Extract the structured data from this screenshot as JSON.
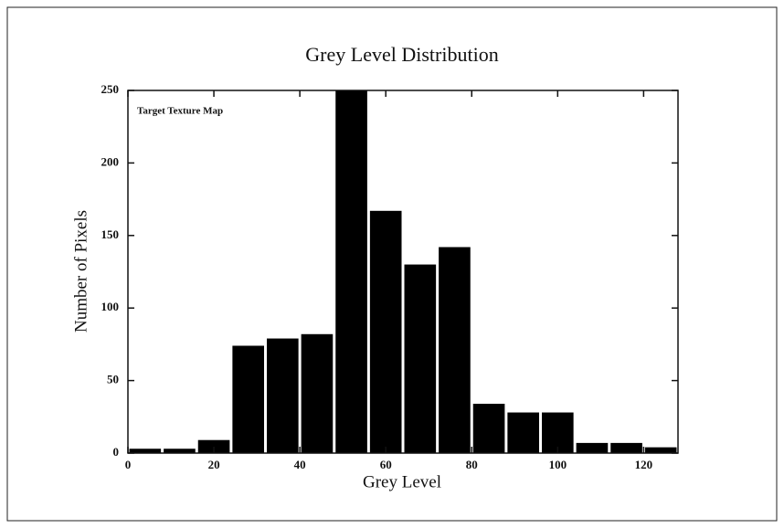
{
  "chart_data": {
    "type": "histogram",
    "title": "Grey Level Distribution",
    "xlabel": "Grey Level",
    "ylabel": "Number of Pixels",
    "annotation": "Target Texture Map",
    "bins": [
      0,
      8,
      16,
      24,
      32,
      40,
      48,
      56,
      64,
      72,
      80,
      88,
      96,
      104,
      112,
      120,
      128
    ],
    "values": [
      3,
      3,
      9,
      74,
      79,
      82,
      250,
      167,
      130,
      142,
      34,
      28,
      28,
      7,
      7,
      4
    ],
    "color": "#000000",
    "xlim": [
      0,
      128
    ],
    "xticks": [
      0,
      20,
      40,
      60,
      80,
      100,
      120
    ],
    "ylim": [
      0,
      250
    ],
    "yticks": [
      0,
      50,
      100,
      150,
      200,
      250
    ]
  }
}
